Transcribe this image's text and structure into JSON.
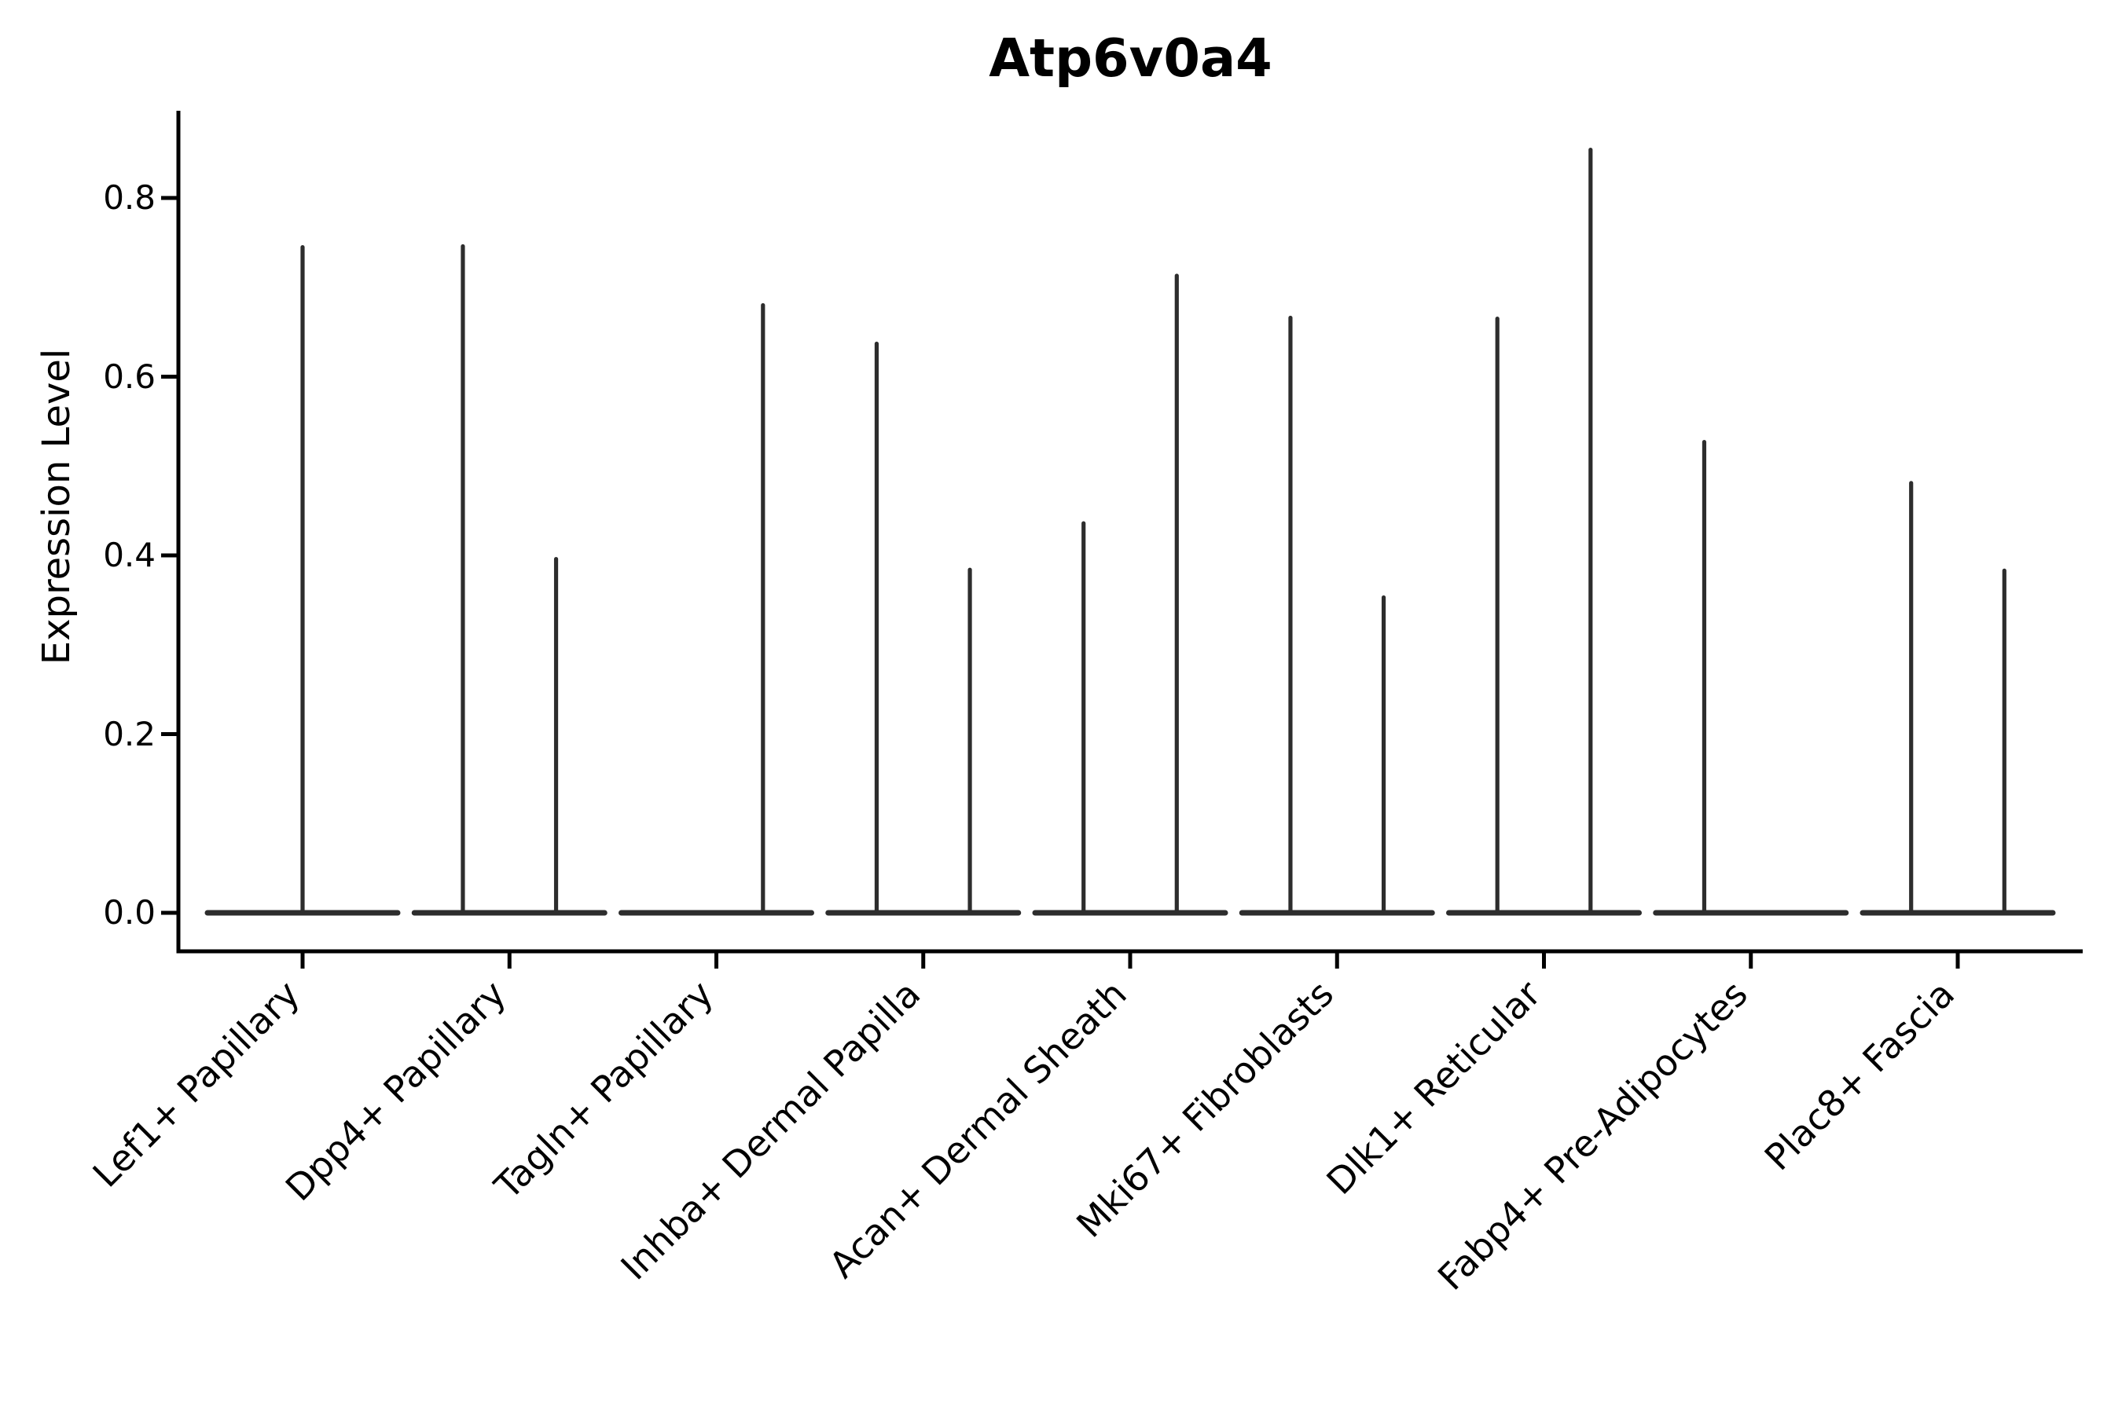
{
  "figure": {
    "title": "Atp6v0a4"
  },
  "chart_data": {
    "type": "violin",
    "title": "Atp6v0a4",
    "xlabel": "",
    "ylabel": "Expression Level",
    "grid": false,
    "legend": null,
    "ylim": [
      -0.043,
      0.9
    ],
    "ytick_values": [
      0.0,
      0.2,
      0.4,
      0.6,
      0.8
    ],
    "ytick_labels": [
      "0.0",
      "0.2",
      "0.4",
      "0.6",
      "0.8"
    ],
    "categories": [
      "Lef1+ Papillary",
      "Dpp4+ Papillary",
      "Tagln+ Papillary",
      "Inhba+ Dermal Papilla",
      "Acan+ Dermal Sheath",
      "Mki67+ Fibroblasts",
      "Dlk1+ Reticular",
      "Fabp4+ Pre-Adipocytes",
      "Plac8+ Fascia"
    ],
    "baseline_value": 0.0,
    "violins": [
      {
        "category": "Lef1+ Papillary",
        "spikes": [
          {
            "pos": "center",
            "max": 0.745
          }
        ]
      },
      {
        "category": "Dpp4+ Papillary",
        "spikes": [
          {
            "pos": "left",
            "max": 0.746
          },
          {
            "pos": "right",
            "max": 0.396
          }
        ]
      },
      {
        "category": "Tagln+ Papillary",
        "spikes": [
          {
            "pos": "right",
            "max": 0.68
          }
        ]
      },
      {
        "category": "Inhba+ Dermal Papilla",
        "spikes": [
          {
            "pos": "left",
            "max": 0.637
          },
          {
            "pos": "right",
            "max": 0.384
          }
        ]
      },
      {
        "category": "Acan+ Dermal Sheath",
        "spikes": [
          {
            "pos": "left",
            "max": 0.436
          },
          {
            "pos": "right",
            "max": 0.713
          }
        ]
      },
      {
        "category": "Mki67+ Fibroblasts",
        "spikes": [
          {
            "pos": "left",
            "max": 0.666
          },
          {
            "pos": "right",
            "max": 0.353
          }
        ]
      },
      {
        "category": "Dlk1+ Reticular",
        "spikes": [
          {
            "pos": "left",
            "max": 0.665
          },
          {
            "pos": "right",
            "max": 0.854
          }
        ]
      },
      {
        "category": "Fabp4+ Pre-Adipocytes",
        "spikes": [
          {
            "pos": "left",
            "max": 0.527
          }
        ]
      },
      {
        "category": "Plac8+ Fascia",
        "spikes": [
          {
            "pos": "left",
            "max": 0.481
          },
          {
            "pos": "right",
            "max": 0.383
          }
        ]
      }
    ],
    "colors": {
      "violin_line": "#2d2d2d",
      "axis": "#000000",
      "text": "#000000",
      "background": "#ffffff"
    }
  }
}
